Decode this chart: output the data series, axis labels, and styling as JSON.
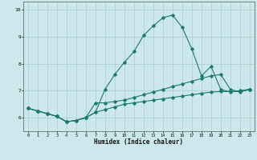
{
  "xlabel": "Humidex (Indice chaleur)",
  "background_color": "#cce8ec",
  "grid_color": "#aacccc",
  "line_color": "#1a7a6e",
  "xlim": [
    -0.5,
    23.5
  ],
  "ylim": [
    5.5,
    10.3
  ],
  "yticks": [
    6,
    7,
    8,
    9,
    10
  ],
  "xticks": [
    0,
    1,
    2,
    3,
    4,
    5,
    6,
    7,
    8,
    9,
    10,
    11,
    12,
    13,
    14,
    15,
    16,
    17,
    18,
    19,
    20,
    21,
    22,
    23
  ],
  "series1_x": [
    0,
    1,
    2,
    3,
    4,
    5,
    6,
    7,
    8,
    9,
    10,
    11,
    12,
    13,
    14,
    15,
    16,
    17,
    18,
    19,
    20,
    21,
    22,
    23
  ],
  "series1_y": [
    6.35,
    6.25,
    6.15,
    6.05,
    5.85,
    5.9,
    6.0,
    6.2,
    7.05,
    7.6,
    8.05,
    8.45,
    9.05,
    9.4,
    9.7,
    9.8,
    9.35,
    8.55,
    7.55,
    7.9,
    7.05,
    6.95,
    7.0,
    7.05
  ],
  "series2_x": [
    0,
    1,
    2,
    3,
    4,
    5,
    6,
    7,
    8,
    9,
    10,
    11,
    12,
    13,
    14,
    15,
    16,
    17,
    18,
    19,
    20,
    21,
    22,
    23
  ],
  "series2_y": [
    6.35,
    6.25,
    6.15,
    6.05,
    5.85,
    5.9,
    6.0,
    6.55,
    6.55,
    6.6,
    6.65,
    6.75,
    6.85,
    6.95,
    7.05,
    7.15,
    7.25,
    7.35,
    7.45,
    7.55,
    7.6,
    7.05,
    6.95,
    7.05
  ],
  "series3_x": [
    0,
    1,
    2,
    3,
    4,
    5,
    6,
    7,
    8,
    9,
    10,
    11,
    12,
    13,
    14,
    15,
    16,
    17,
    18,
    19,
    20,
    21,
    22,
    23
  ],
  "series3_y": [
    6.35,
    6.25,
    6.15,
    6.05,
    5.85,
    5.9,
    6.0,
    6.2,
    6.3,
    6.4,
    6.5,
    6.55,
    6.6,
    6.65,
    6.7,
    6.75,
    6.8,
    6.85,
    6.9,
    6.95,
    6.97,
    6.97,
    6.97,
    7.05
  ]
}
